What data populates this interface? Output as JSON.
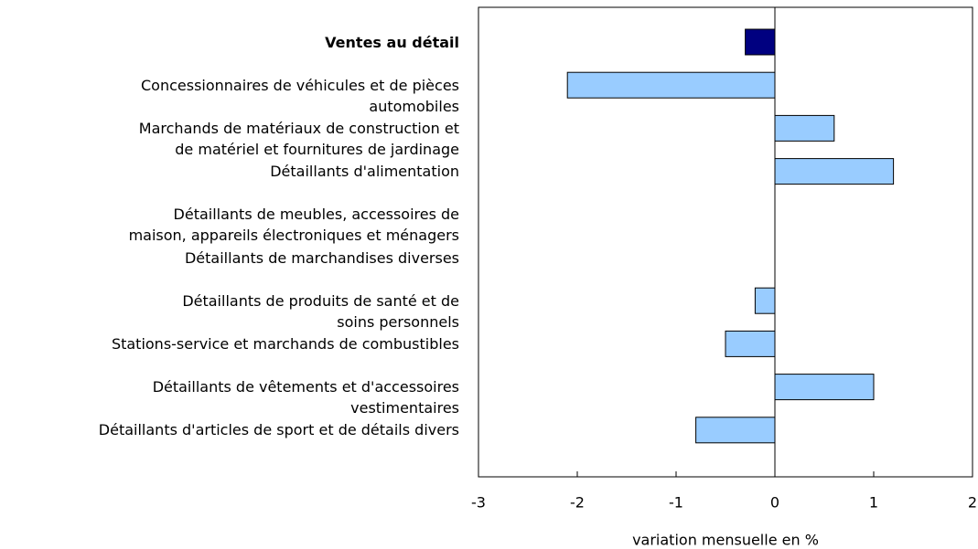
{
  "chart_data": {
    "type": "barh",
    "xlabel": "variation mensuelle en %",
    "categories": [
      "Ventes au détail",
      "Concessionnaires de véhicules et de pièces\nautomobiles",
      "Marchands de matériaux de construction et\nde matériel et fournitures de jardinage",
      "Détaillants d'alimentation",
      "Détaillants de meubles, accessoires de\nmaison, appareils électroniques et ménagers",
      "Détaillants de marchandises diverses",
      "Détaillants de produits de santé et de\nsoins personnels",
      "Stations-service et marchands de combustibles",
      "Détaillants de vêtements et d'accessoires\nvestimentaires",
      "Détaillants d'articles de sport et de détails divers"
    ],
    "values": [
      -0.3,
      -2.1,
      0.6,
      1.2,
      0,
      0,
      -0.2,
      -0.5,
      1.0,
      -0.8
    ],
    "colors": [
      "#000080",
      "#99ccff",
      "#99ccff",
      "#99ccff",
      "#99ccff",
      "#99ccff",
      "#99ccff",
      "#99ccff",
      "#99ccff",
      "#99ccff"
    ],
    "emphasis": [
      true,
      false,
      false,
      false,
      false,
      false,
      false,
      false,
      false,
      false
    ],
    "xlim": [
      -3,
      2
    ],
    "xticks": [
      -3,
      -2,
      -1,
      0,
      1,
      2
    ]
  }
}
